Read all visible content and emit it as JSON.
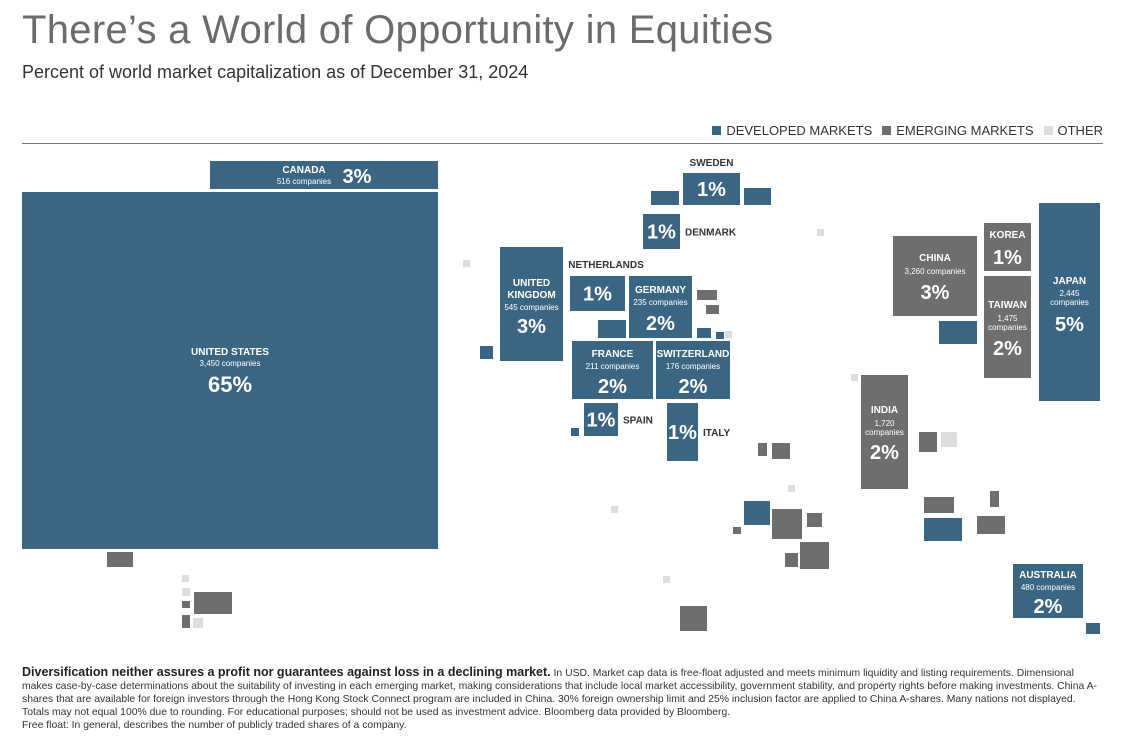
{
  "title": "There’s a World of Opportunity in Equities",
  "subtitle": "Percent of world market capitalization as of December 31, 2024",
  "legend": [
    {
      "label": "DEVELOPED MARKETS",
      "color": "#3b6683"
    },
    {
      "label": "EMERGING MARKETS",
      "color": "#6e6e6e"
    },
    {
      "label": "OTHER",
      "color": "#dedede"
    }
  ],
  "colors": {
    "developed": "#3b6683",
    "emerging": "#6e6e6e",
    "other": "#dedede"
  },
  "chart_data": {
    "type": "treemap-map",
    "title": "There’s a World of Opportunity in Equities",
    "subtitle": "Percent of world market capitalization as of December 31, 2024",
    "unit": "percent of world market capitalization",
    "labeled_markets": [
      {
        "name": "UNITED STATES",
        "companies": "3,450 companies",
        "percent": 65,
        "label": "65%",
        "category": "developed"
      },
      {
        "name": "CANADA",
        "companies": "516 companies",
        "percent": 3,
        "label": "3%",
        "category": "developed"
      },
      {
        "name": "SWEDEN",
        "percent": 1,
        "label": "1%",
        "category": "developed"
      },
      {
        "name": "DENMARK",
        "percent": 1,
        "label": "1%",
        "category": "developed"
      },
      {
        "name": "UNITED KINGDOM",
        "companies": "545 companies",
        "percent": 3,
        "label": "3%",
        "category": "developed"
      },
      {
        "name": "NETHERLANDS",
        "percent": 1,
        "label": "1%",
        "category": "developed"
      },
      {
        "name": "GERMANY",
        "companies": "235 companies",
        "percent": 2,
        "label": "2%",
        "category": "developed"
      },
      {
        "name": "FRANCE",
        "companies": "211 companies",
        "percent": 2,
        "label": "2%",
        "category": "developed"
      },
      {
        "name": "SWITZERLAND",
        "companies": "176 companies",
        "percent": 2,
        "label": "2%",
        "category": "developed"
      },
      {
        "name": "SPAIN",
        "percent": 1,
        "label": "1%",
        "category": "developed"
      },
      {
        "name": "ITALY",
        "percent": 1,
        "label": "1%",
        "category": "developed"
      },
      {
        "name": "CHINA",
        "companies": "3,260 companies",
        "percent": 3,
        "label": "3%",
        "category": "emerging"
      },
      {
        "name": "KOREA",
        "percent": 1,
        "label": "1%",
        "category": "emerging"
      },
      {
        "name": "TAIWAN",
        "companies": "1,475 companies",
        "percent": 2,
        "label": "2%",
        "category": "emerging"
      },
      {
        "name": "JAPAN",
        "companies": "2,445 companies",
        "percent": 5,
        "label": "5%",
        "category": "developed"
      },
      {
        "name": "INDIA",
        "companies": "1,720 companies",
        "percent": 2,
        "label": "2%",
        "category": "emerging"
      },
      {
        "name": "AUSTRALIA",
        "companies": "480 companies",
        "percent": 2,
        "label": "2%",
        "category": "developed"
      }
    ]
  },
  "footnote": {
    "bold": "Diversification neither assures a profit nor guarantees against loss in a declining market.",
    "text": " In USD. Market cap data is free-float adjusted and meets minimum liquidity and listing requirements. Dimensional makes case-by-case determinations about the suitability of investing in each emerging market, making considerations that include local market accessibility, government stability, and property rights before making investments. China A-shares that are available for foreign investors through the Hong Kong Stock Connect program are included in China. 30% foreign ownership limit and 25% inclusion factor are applied to China A-shares. Many nations not displayed. Totals may not equal 100% due to rounding. For educational purposes; should not be used as investment advice. Bloomberg data provided by Bloomberg.",
    "free_float": "Free float: In general, describes the number of publicly traded shares of a company."
  }
}
